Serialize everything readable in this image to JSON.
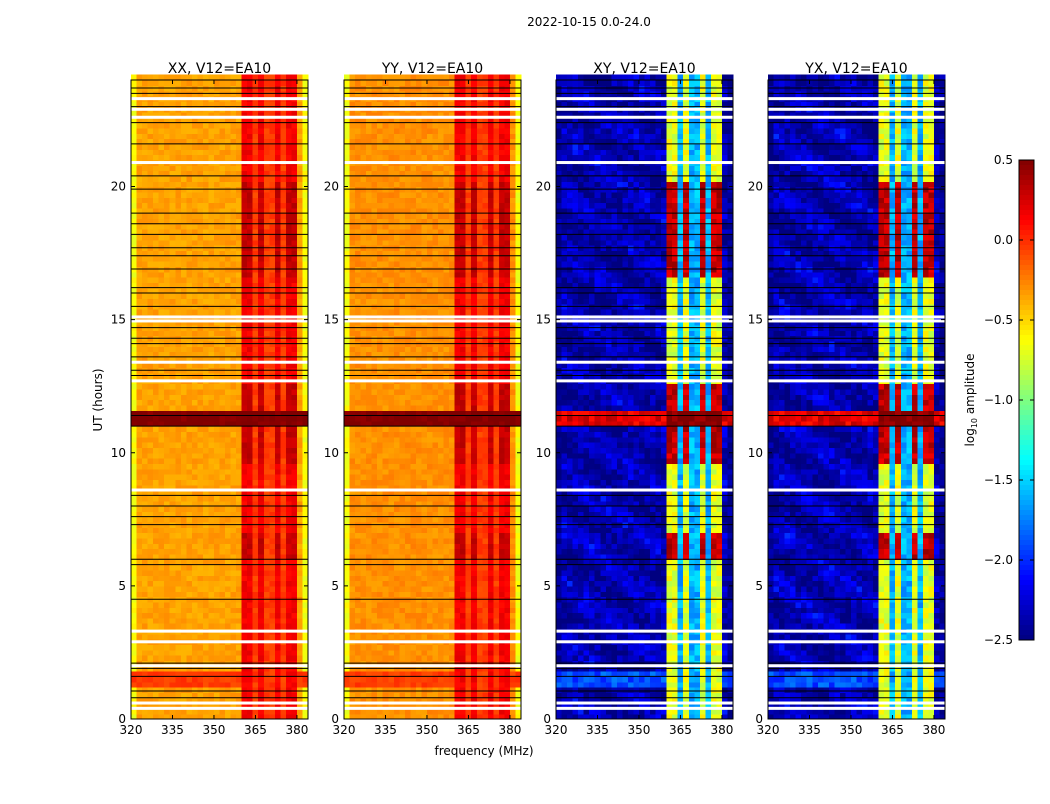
{
  "chart_data": {
    "type": "heatmap",
    "title": "2022-10-15 0.0-24.0",
    "xlabel": "frequency (MHz)",
    "ylabel": "UT (hours)",
    "xlim": [
      320,
      384
    ],
    "ylim": [
      0,
      24
    ],
    "xticks": [
      "320",
      "335",
      "350",
      "365",
      "380"
    ],
    "xtick_values": [
      320,
      335,
      350,
      365,
      380
    ],
    "yticks": [
      "0",
      "5",
      "10",
      "15",
      "20"
    ],
    "ytick_values": [
      0,
      5,
      10,
      15,
      20
    ],
    "colorbar": {
      "label_prefix": "log",
      "label_sub": "10",
      "label_suffix": " amplitude",
      "range": [
        -2.5,
        0.5
      ],
      "ticks": [
        "0.5",
        "0.0",
        "−0.5",
        "−1.0",
        "−1.5",
        "−2.0",
        "−2.5"
      ],
      "tick_values": [
        0.5,
        0.0,
        -0.5,
        -1.0,
        -1.5,
        -2.0,
        -2.5
      ],
      "colormap": "jet"
    },
    "panels": [
      {
        "title": "XX, V12=EA10",
        "base": -0.35,
        "band": 0.15,
        "band_gap": -0.05,
        "edge": -0.65,
        "burst": 0.5,
        "burst_band": 0.5,
        "active_band": 0.3,
        "low_event": -0.05
      },
      {
        "title": "YY, V12=EA10",
        "base": -0.3,
        "band": 0.15,
        "band_gap": -0.05,
        "edge": -0.65,
        "burst": 0.5,
        "burst_band": 0.5,
        "active_band": 0.3,
        "low_event": -0.05
      },
      {
        "title": "XY, V12=EA10",
        "base": -2.35,
        "band": -0.7,
        "band_gap": -1.6,
        "edge": -2.45,
        "burst": 0.2,
        "burst_band": 0.5,
        "active_band": 0.3,
        "low_event": -1.9
      },
      {
        "title": "YX, V12=EA10",
        "base": -2.35,
        "band": -0.7,
        "band_gap": -1.6,
        "edge": -2.45,
        "burst": 0.2,
        "burst_band": 0.5,
        "active_band": 0.3,
        "low_event": -1.9
      }
    ],
    "high_band_mhz": [
      360.5,
      380
    ],
    "band_gaps_mhz": [
      365,
      370,
      375
    ],
    "burst_hours": [
      10.95,
      11.45
    ],
    "active_hours": [
      [
        9.5,
        12.5
      ],
      [
        5.9,
        7.0
      ],
      [
        16.5,
        20.0
      ]
    ],
    "low_event_hours": [
      1.2,
      1.6
    ],
    "flagged_hours": [
      0.4,
      0.6,
      2.0,
      2.9,
      3.3,
      8.6,
      12.7,
      13.4,
      14.95,
      15.1,
      20.9,
      22.6,
      22.9,
      23.3
    ],
    "boundary_hours": [
      0.8,
      1.05,
      1.6,
      1.9,
      2.1,
      4.5,
      5.8,
      6.0,
      7.3,
      7.6,
      8.0,
      8.4,
      11.0,
      11.4,
      12.9,
      13.1,
      13.6,
      14.1,
      14.3,
      14.7,
      15.5,
      16.0,
      16.2,
      16.9,
      17.4,
      17.7,
      18.2,
      18.6,
      19.0,
      19.9,
      20.4,
      21.6,
      22.4,
      23.0,
      23.5,
      23.7
    ]
  }
}
